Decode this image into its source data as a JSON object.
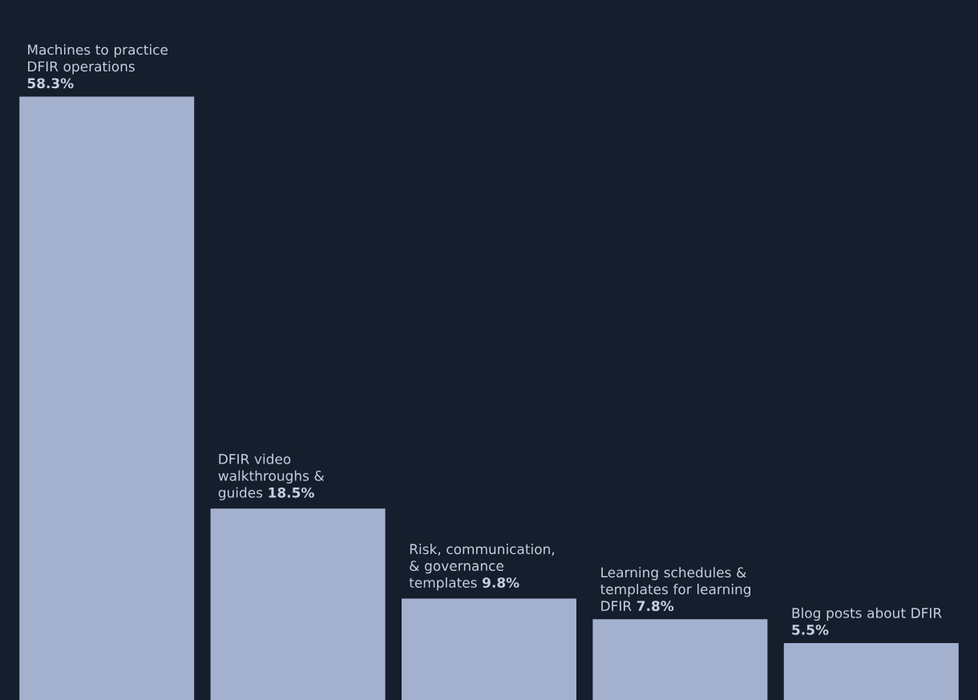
{
  "chart_data": {
    "type": "bar",
    "categories": [
      "Machines to practice DFIR operations",
      "DFIR video walkthroughs & guides",
      "Risk, communication, & governance templates",
      "Learning schedules & templates for learning DFIR",
      "Blog posts about DFIR"
    ],
    "values": [
      58.3,
      18.5,
      9.8,
      7.8,
      5.5
    ],
    "value_labels": [
      "58.3%",
      "18.5%",
      "9.8%",
      "7.8%",
      "5.5%"
    ],
    "color": "#a3b1cf"
  }
}
